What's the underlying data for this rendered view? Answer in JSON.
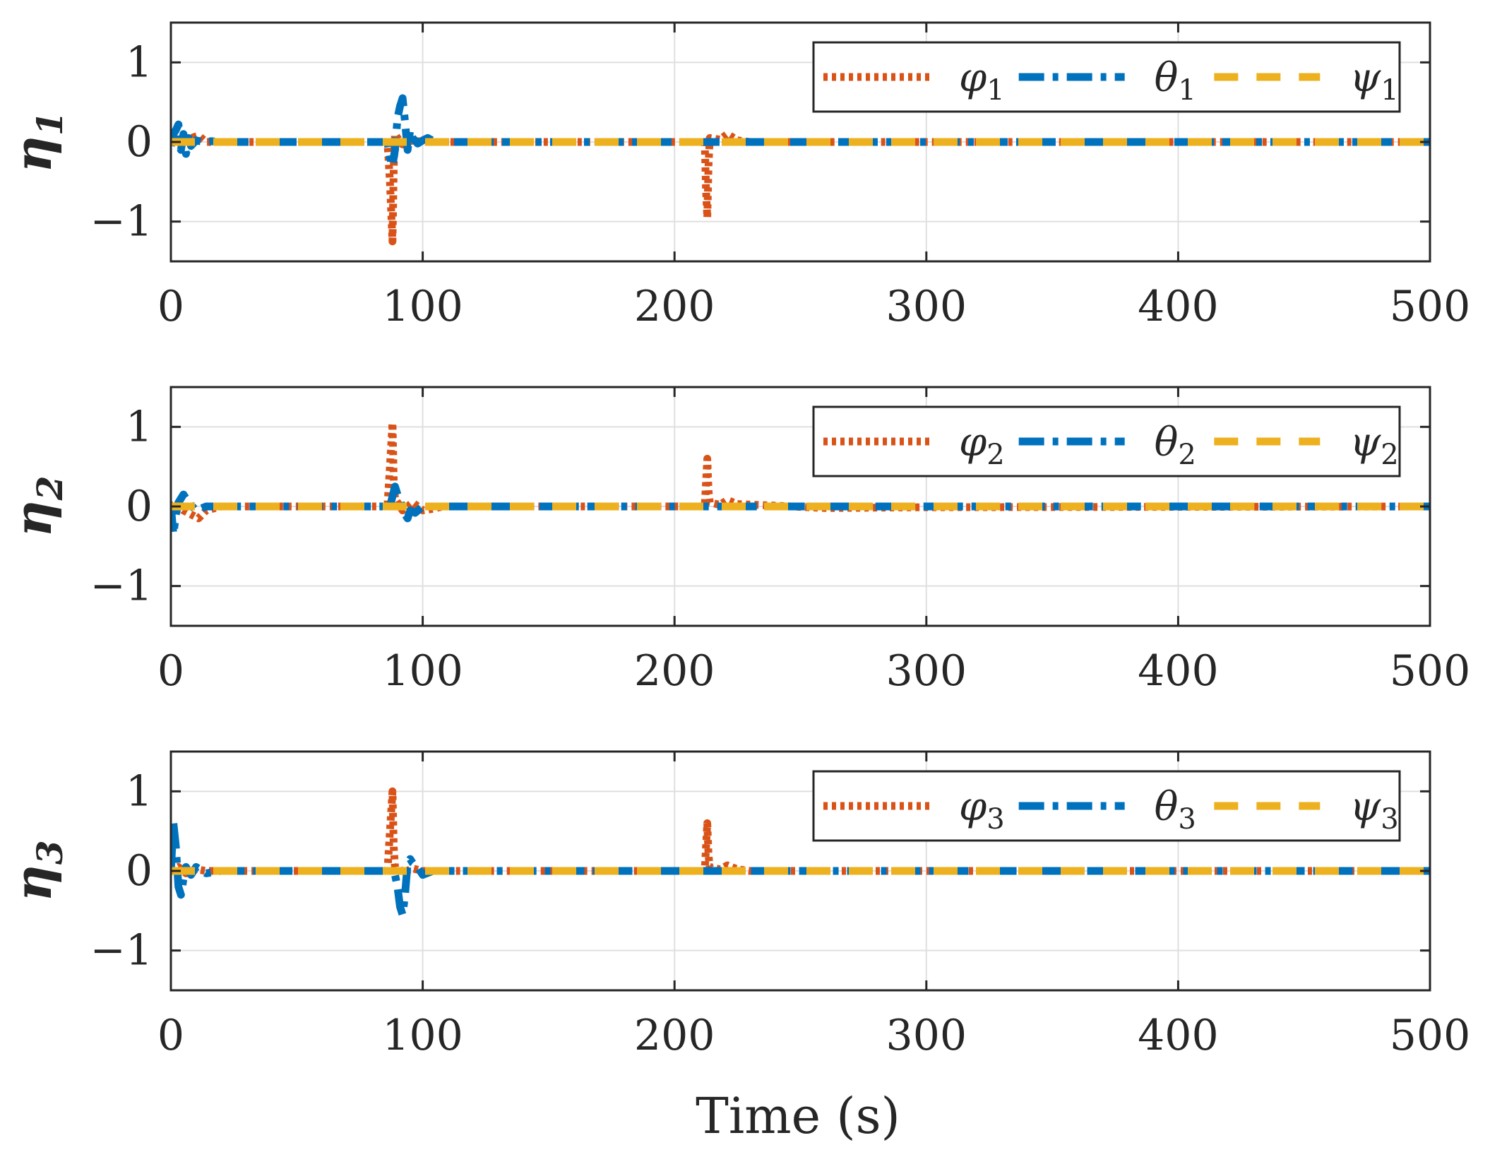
{
  "colors": {
    "phi": "#D95319",
    "theta": "#0072BD",
    "psi": "#EDB120",
    "grid": "#DFDFDF",
    "axis": "#262626"
  },
  "chart_data": [
    {
      "type": "line",
      "ylabel_symbol": "η",
      "ylabel_sub": "1",
      "xlim": [
        0,
        500
      ],
      "ylim": [
        -1.5,
        1.5
      ],
      "xticks": [
        "0",
        "100",
        "200",
        "300",
        "400",
        "500"
      ],
      "yticks": [
        "−1",
        "0",
        "1"
      ],
      "grid": true,
      "legend_position": "top-right",
      "series": [
        {
          "name": "φ1",
          "symbol": "φ",
          "sub": "1",
          "style": "dotted",
          "color_key": "phi",
          "x": [
            0,
            3,
            6,
            9,
            11,
            14,
            20,
            86,
            87,
            88,
            88.5,
            89,
            90,
            92,
            96,
            100,
            212,
            212.5,
            213,
            213.5,
            214,
            218,
            221,
            225,
            230,
            500
          ],
          "y": [
            0,
            0.03,
            -0.02,
            0.06,
            0.08,
            0,
            0,
            0,
            -0.5,
            -1.25,
            -0.3,
            0.1,
            0.05,
            -0.03,
            0.02,
            0,
            0,
            -0.6,
            -0.95,
            -0.3,
            0.05,
            0.03,
            0.1,
            0.02,
            0,
            0
          ]
        },
        {
          "name": "θ1",
          "symbol": "θ",
          "sub": "1",
          "style": "dashdot",
          "color_key": "theta",
          "x": [
            0,
            1,
            2,
            3,
            4,
            5,
            6,
            7,
            8,
            10,
            13,
            16,
            20,
            86,
            87,
            88,
            89,
            90,
            91,
            92,
            93,
            94,
            95,
            96,
            98,
            100,
            102,
            105,
            110,
            500
          ],
          "y": [
            -0.05,
            0.1,
            0.15,
            0.22,
            -0.1,
            0.1,
            -0.15,
            0.05,
            -0.05,
            0.02,
            0,
            0.01,
            0,
            0,
            -0.2,
            -0.3,
            -0.1,
            0.3,
            0.45,
            0.55,
            0.25,
            -0.1,
            0.15,
            0.05,
            -0.02,
            0.02,
            0.05,
            0,
            0,
            0
          ]
        },
        {
          "name": "ψ1",
          "symbol": "ψ",
          "sub": "1",
          "style": "dashed",
          "color_key": "psi",
          "x": [
            0,
            500
          ],
          "y": [
            0,
            0
          ]
        }
      ],
      "legend": [
        "φ1",
        "θ1",
        "ψ1"
      ]
    },
    {
      "type": "line",
      "ylabel_symbol": "η",
      "ylabel_sub": "2",
      "xlim": [
        0,
        500
      ],
      "ylim": [
        -1.5,
        1.5
      ],
      "xticks": [
        "0",
        "100",
        "200",
        "300",
        "400",
        "500"
      ],
      "yticks": [
        "−1",
        "0",
        "1"
      ],
      "grid": true,
      "legend_position": "top-right",
      "series": [
        {
          "name": "φ2",
          "symbol": "φ",
          "sub": "2",
          "style": "dotted",
          "color_key": "phi",
          "x": [
            0,
            2,
            5,
            8,
            11,
            14,
            20,
            86,
            87,
            88,
            88.5,
            89,
            90,
            92,
            96,
            100,
            104,
            108,
            212,
            212.5,
            213,
            213.5,
            214,
            218,
            221,
            225,
            240,
            260,
            300,
            500
          ],
          "y": [
            0,
            0.05,
            -0.05,
            -0.1,
            -0.15,
            -0.05,
            0,
            0,
            0.5,
            1.05,
            0.3,
            0.1,
            0.05,
            -0.05,
            0.05,
            -0.05,
            -0.03,
            0,
            0,
            0.3,
            0.6,
            0.2,
            0.05,
            0.02,
            0.08,
            0.03,
            0.01,
            -0.02,
            -0.01,
            0
          ]
        },
        {
          "name": "θ2",
          "symbol": "θ",
          "sub": "2",
          "style": "dashdot",
          "color_key": "theta",
          "x": [
            0,
            1,
            2,
            3,
            4,
            5,
            7,
            10,
            14,
            20,
            87,
            89,
            90,
            91,
            92,
            93,
            94,
            95,
            97,
            100,
            104,
            500
          ],
          "y": [
            0,
            -0.35,
            -0.1,
            0.05,
            0.1,
            0.15,
            0.05,
            -0.05,
            0,
            0,
            0,
            0.25,
            0.15,
            0.1,
            -0.05,
            -0.1,
            -0.15,
            -0.05,
            -0.08,
            0,
            0,
            0
          ]
        },
        {
          "name": "ψ2",
          "symbol": "ψ",
          "sub": "2",
          "style": "dashed",
          "color_key": "psi",
          "x": [
            0,
            500
          ],
          "y": [
            0,
            0
          ]
        }
      ],
      "legend": [
        "φ2",
        "θ2",
        "ψ2"
      ]
    },
    {
      "type": "line",
      "ylabel_symbol": "η",
      "ylabel_sub": "3",
      "xlim": [
        0,
        500
      ],
      "ylim": [
        -1.5,
        1.5
      ],
      "xticks": [
        "0",
        "100",
        "200",
        "300",
        "400",
        "500"
      ],
      "yticks": [
        "−1",
        "0",
        "1"
      ],
      "grid": true,
      "legend_position": "top-right",
      "series": [
        {
          "name": "φ3",
          "symbol": "φ",
          "sub": "3",
          "style": "dotted",
          "color_key": "phi",
          "x": [
            0,
            3,
            6,
            10,
            14,
            20,
            86,
            87,
            88,
            88.5,
            89,
            90,
            92,
            96,
            100,
            212,
            212.5,
            213,
            213.5,
            214,
            218,
            221,
            225,
            230,
            500
          ],
          "y": [
            0,
            0.05,
            -0.03,
            0.02,
            0,
            0,
            0,
            0.5,
            1.0,
            0.3,
            0.05,
            0.05,
            -0.02,
            0.03,
            0,
            0,
            0.3,
            0.6,
            0.2,
            0.05,
            0.02,
            0.07,
            0.02,
            0,
            0
          ]
        },
        {
          "name": "θ3",
          "symbol": "θ",
          "sub": "3",
          "style": "dashdot",
          "color_key": "theta",
          "x": [
            0,
            1,
            2,
            3,
            4,
            5,
            6,
            8,
            10,
            14,
            20,
            87,
            89,
            90,
            91,
            92,
            93,
            94,
            95,
            96,
            98,
            100,
            104,
            500
          ],
          "y": [
            0,
            0.6,
            0.3,
            -0.2,
            -0.3,
            -0.1,
            0.05,
            -0.05,
            0.05,
            -0.03,
            0,
            0,
            -0.05,
            -0.2,
            -0.45,
            -0.55,
            -0.3,
            0.1,
            0.15,
            0.1,
            0.05,
            -0.05,
            0,
            0
          ]
        },
        {
          "name": "ψ3",
          "symbol": "ψ",
          "sub": "3",
          "style": "dashed",
          "color_key": "psi",
          "x": [
            0,
            500
          ],
          "y": [
            0,
            0
          ]
        }
      ],
      "legend": [
        "φ3",
        "θ3",
        "ψ3"
      ]
    }
  ],
  "xlabel": "Time (s)"
}
